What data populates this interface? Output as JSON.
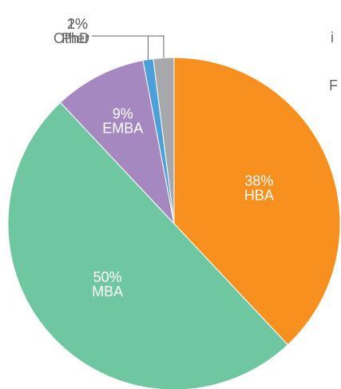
{
  "chart_data": {
    "type": "pie",
    "categories": [
      "HBA",
      "MBA",
      "EMBA",
      "PhD",
      "Other"
    ],
    "values": [
      38,
      50,
      9,
      1,
      2
    ],
    "value_labels": [
      "38%",
      "50%",
      "9%",
      "1%",
      "2%"
    ],
    "colors": [
      "#f7901e",
      "#6fc7a1",
      "#a688c0",
      "#4d9fda",
      "#a6a8ab"
    ],
    "start_angle": 0,
    "direction": "clockwise",
    "cropped_text": [
      "i",
      "F"
    ]
  }
}
